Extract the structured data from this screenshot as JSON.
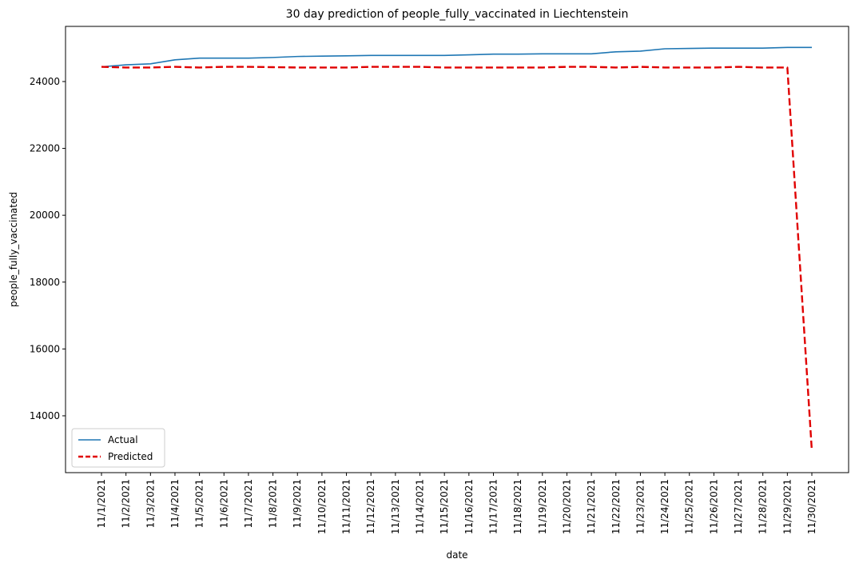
{
  "chart_data": {
    "type": "line",
    "title": "30 day prediction of people_fully_vaccinated in Liechtenstein",
    "xlabel": "date",
    "ylabel": "people_fully_vaccinated",
    "categories": [
      "11/1/2021",
      "11/2/2021",
      "11/3/2021",
      "11/4/2021",
      "11/5/2021",
      "11/6/2021",
      "11/7/2021",
      "11/8/2021",
      "11/9/2021",
      "11/10/2021",
      "11/11/2021",
      "11/12/2021",
      "11/13/2021",
      "11/14/2021",
      "11/15/2021",
      "11/16/2021",
      "11/17/2021",
      "11/18/2021",
      "11/19/2021",
      "11/20/2021",
      "11/21/2021",
      "11/22/2021",
      "11/23/2021",
      "11/24/2021",
      "11/25/2021",
      "11/26/2021",
      "11/27/2021",
      "11/28/2021",
      "11/29/2021",
      "11/30/2021"
    ],
    "ylim": [
      12300,
      25650
    ],
    "yticks": [
      14000,
      16000,
      18000,
      20000,
      22000,
      24000
    ],
    "legend_position": "lower-left",
    "grid": false,
    "series": [
      {
        "name": "Actual",
        "color": "#1f77b4",
        "style": "solid",
        "values": [
          24440,
          24500,
          24530,
          24650,
          24700,
          24700,
          24700,
          24720,
          24750,
          24760,
          24770,
          24780,
          24780,
          24780,
          24780,
          24800,
          24820,
          24820,
          24830,
          24830,
          24830,
          24890,
          24910,
          24980,
          24990,
          25000,
          25000,
          25000,
          25020,
          25020
        ]
      },
      {
        "name": "Predicted",
        "color": "#e00000",
        "style": "dashed",
        "values": [
          24440,
          24420,
          24420,
          24440,
          24420,
          24440,
          24440,
          24430,
          24420,
          24420,
          24420,
          24440,
          24440,
          24440,
          24420,
          24420,
          24420,
          24420,
          24420,
          24440,
          24440,
          24420,
          24440,
          24420,
          24420,
          24420,
          24440,
          24420,
          24420,
          12950
        ]
      }
    ]
  }
}
